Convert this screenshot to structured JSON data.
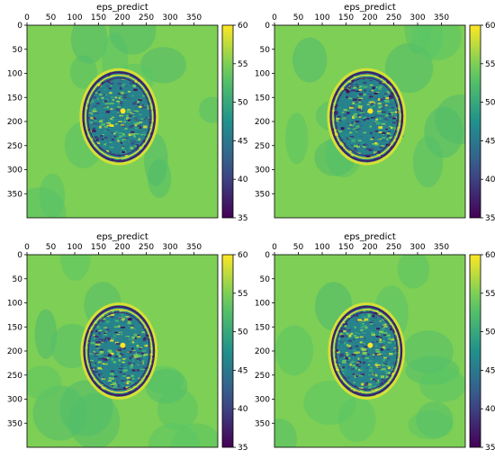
{
  "chart_data": [
    {
      "type": "heatmap",
      "title": "eps_predict",
      "x_ticks": [
        "0",
        "50",
        "100",
        "150",
        "200",
        "250",
        "300",
        "350"
      ],
      "y_ticks": [
        "0",
        "50",
        "100",
        "150",
        "200",
        "250",
        "300",
        "350"
      ],
      "xlim": [
        0,
        400
      ],
      "ylim": [
        400,
        0
      ],
      "x_axis_position": "top",
      "colorbar": {
        "range": [
          35,
          60
        ],
        "ticks": [
          "35",
          "40",
          "45",
          "50",
          "55",
          "60"
        ],
        "colormap": "viridis"
      },
      "background_value": 55,
      "object": {
        "shape": "ellipse",
        "center": [
          193,
          190
        ],
        "radius_x": 80,
        "radius_y": 98,
        "value_range": [
          35,
          60
        ]
      }
    },
    {
      "type": "heatmap",
      "title": "eps_predict",
      "x_ticks": [
        "0",
        "50",
        "100",
        "150",
        "200",
        "250",
        "300",
        "350"
      ],
      "y_ticks": [
        "0",
        "50",
        "100",
        "150",
        "200",
        "250",
        "300",
        "350"
      ],
      "xlim": [
        0,
        400
      ],
      "ylim": [
        400,
        0
      ],
      "x_axis_position": "top",
      "colorbar": {
        "range": [
          35,
          60
        ],
        "ticks": [
          "35",
          "40",
          "45",
          "50",
          "55",
          "60"
        ],
        "colormap": "viridis"
      },
      "background_value": 55,
      "object": {
        "shape": "ellipse",
        "center": [
          193,
          190
        ],
        "radius_x": 80,
        "radius_y": 98,
        "value_range": [
          35,
          60
        ]
      }
    },
    {
      "type": "heatmap",
      "title": "eps_predict",
      "x_ticks": [
        "0",
        "50",
        "100",
        "150",
        "200",
        "250",
        "300",
        "350"
      ],
      "y_ticks": [
        "0",
        "50",
        "100",
        "150",
        "200",
        "250",
        "300",
        "350"
      ],
      "xlim": [
        0,
        400
      ],
      "ylim": [
        400,
        0
      ],
      "x_axis_position": "top",
      "colorbar": {
        "range": [
          35,
          60
        ],
        "ticks": [
          "35",
          "40",
          "45",
          "50",
          "55",
          "60"
        ],
        "colormap": "viridis"
      },
      "background_value": 55,
      "object": {
        "shape": "ellipse",
        "center": [
          193,
          200
        ],
        "radius_x": 78,
        "radius_y": 98,
        "value_range": [
          35,
          60
        ]
      }
    },
    {
      "type": "heatmap",
      "title": "eps_predict",
      "x_ticks": [
        "0",
        "50",
        "100",
        "150",
        "200",
        "250",
        "300",
        "350"
      ],
      "y_ticks": [
        "0",
        "50",
        "100",
        "150",
        "200",
        "250",
        "300",
        "350"
      ],
      "xlim": [
        0,
        400
      ],
      "ylim": [
        400,
        0
      ],
      "x_axis_position": "top",
      "colorbar": {
        "range": [
          35,
          60
        ],
        "ticks": [
          "35",
          "40",
          "45",
          "50",
          "55",
          "60"
        ],
        "colormap": "viridis"
      },
      "background_value": 55,
      "object": {
        "shape": "ellipse",
        "center": [
          193,
          200
        ],
        "radius_x": 78,
        "radius_y": 98,
        "value_range": [
          35,
          60
        ]
      }
    }
  ]
}
